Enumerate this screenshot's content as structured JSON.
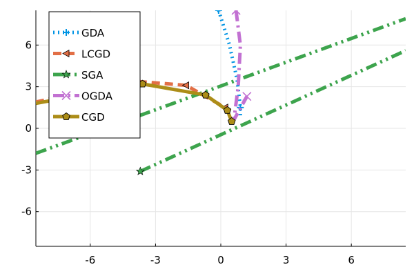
{
  "chart_data": {
    "type": "line",
    "title": "",
    "xlabel": "",
    "ylabel": "",
    "xlim": [
      -8.5,
      8.5
    ],
    "ylim": [
      -8.5,
      8.5
    ],
    "xticks": [
      -6,
      -3,
      0,
      3,
      6
    ],
    "yticks": [
      -6,
      -3,
      0,
      3,
      6
    ],
    "xtick_labels": [
      "-6",
      "-3",
      "0",
      "3",
      "6"
    ],
    "ytick_labels": [
      "-6",
      "-3",
      "0",
      "3",
      "6"
    ],
    "grid": true,
    "legend_position": "top-left",
    "series": [
      {
        "name": "GDA",
        "color": "#0094e4",
        "dash": "dot",
        "marker": "plus",
        "x": [
          -0.1,
          0.4,
          0.75,
          0.9,
          0.9
        ],
        "y": [
          8.5,
          6.0,
          3.5,
          1.5,
          0.8
        ],
        "marker_indices": [
          0,
          3
        ]
      },
      {
        "name": "LCGD",
        "color": "#e26f46",
        "dash": "dash",
        "marker": "triangle-left",
        "x": [
          -8.5,
          -4.0,
          -1.6,
          0.2
        ],
        "y": [
          1.9,
          3.4,
          3.1,
          1.5
        ],
        "marker_indices": [
          2,
          3
        ]
      },
      {
        "name": "SGA",
        "color": "#3da44d",
        "dash": "dashdotdot",
        "marker": "star",
        "x": [
          -8.5,
          8.5
        ],
        "y": [
          -1.8,
          7.9
        ],
        "segments": [
          {
            "x": [
              -8.5,
              8.5
            ],
            "y": [
              -1.8,
              7.9
            ]
          },
          {
            "x": [
              -3.7,
              8.5
            ],
            "y": [
              -3.1,
              5.6
            ]
          }
        ],
        "marker_points": {
          "x": [
            -3.7
          ],
          "y": [
            -3.1
          ]
        }
      },
      {
        "name": "OGDA",
        "color": "#c271d2",
        "dash": "dashdot",
        "marker": "cross",
        "x": [
          0.7,
          0.9,
          0.8,
          0.6,
          1.2
        ],
        "y": [
          8.5,
          6.0,
          3.0,
          0.6,
          2.3
        ],
        "marker_indices": [
          0,
          4
        ]
      },
      {
        "name": "CGD",
        "color": "#ac8d18",
        "dash": "solid",
        "marker": "pentagon",
        "x": [
          -8.5,
          -3.6,
          -0.7,
          0.3,
          0.5
        ],
        "y": [
          1.8,
          3.2,
          2.4,
          1.3,
          0.5
        ],
        "marker_indices": [
          1,
          2,
          3,
          4
        ]
      }
    ]
  }
}
